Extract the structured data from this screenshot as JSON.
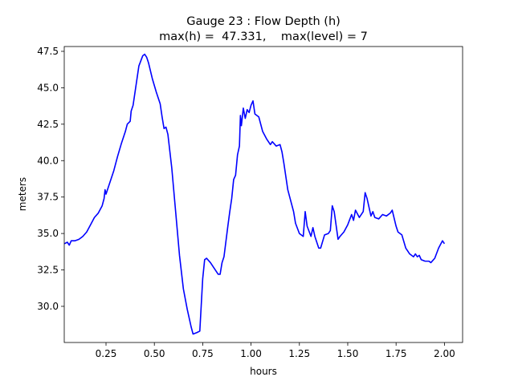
{
  "chart_data": {
    "type": "line",
    "title": "Gauge 23 : Flow Depth (h)",
    "subtitle": "max(h) =  47.331,    max(level) = 7",
    "xlabel": "hours",
    "ylabel": "meters",
    "color": "#0000ff",
    "xlim": [
      0.034,
      2.094
    ],
    "ylim": [
      27.52,
      47.83
    ],
    "xticks": [
      0.25,
      {
        "value": 0.5,
        "label": "0.50"
      },
      0.75,
      {
        "value": 1,
        "label": "1.00"
      },
      1.25,
      {
        "value": 1.5,
        "label": "1.50"
      },
      1.75,
      {
        "value": 2,
        "label": "2.00"
      }
    ],
    "yticks": [
      {
        "value": 30,
        "label": "30.0"
      },
      32.5,
      {
        "value": 35,
        "label": "35.0"
      },
      37.5,
      {
        "value": 40,
        "label": "40.0"
      },
      42.5,
      {
        "value": 45,
        "label": "45.0"
      },
      47.5
    ],
    "x": [
      0.035,
      0.05,
      0.06,
      0.07,
      0.09,
      0.11,
      0.13,
      0.15,
      0.17,
      0.19,
      0.21,
      0.23,
      0.24,
      0.245,
      0.25,
      0.27,
      0.29,
      0.31,
      0.33,
      0.35,
      0.36,
      0.375,
      0.38,
      0.39,
      0.4,
      0.42,
      0.44,
      0.45,
      0.46,
      0.47,
      0.49,
      0.51,
      0.53,
      0.54,
      0.55,
      0.56,
      0.57,
      0.59,
      0.61,
      0.63,
      0.65,
      0.67,
      0.69,
      0.7,
      0.72,
      0.735,
      0.75,
      0.76,
      0.77,
      0.79,
      0.81,
      0.83,
      0.84,
      0.85,
      0.86,
      0.88,
      0.89,
      0.9,
      0.91,
      0.92,
      0.93,
      0.94,
      0.945,
      0.95,
      0.96,
      0.97,
      0.98,
      0.99,
      1.0,
      1.01,
      1.02,
      1.04,
      1.06,
      1.08,
      1.1,
      1.11,
      1.13,
      1.15,
      1.16,
      1.17,
      1.19,
      1.2,
      1.22,
      1.23,
      1.25,
      1.27,
      1.28,
      1.29,
      1.31,
      1.32,
      1.33,
      1.35,
      1.36,
      1.38,
      1.4,
      1.41,
      1.42,
      1.43,
      1.45,
      1.46,
      1.48,
      1.5,
      1.52,
      1.53,
      1.54,
      1.56,
      1.58,
      1.59,
      1.6,
      1.62,
      1.63,
      1.64,
      1.66,
      1.68,
      1.7,
      1.72,
      1.73,
      1.75,
      1.76,
      1.78,
      1.8,
      1.82,
      1.84,
      1.85,
      1.86,
      1.87,
      1.88,
      1.9,
      1.92,
      1.93,
      1.95,
      1.97,
      1.99,
      2.0
    ],
    "values": [
      34.3,
      34.4,
      34.2,
      34.5,
      34.5,
      34.6,
      34.8,
      35.1,
      35.6,
      36.1,
      36.4,
      36.9,
      37.4,
      38.0,
      37.7,
      38.5,
      39.3,
      40.3,
      41.2,
      42.0,
      42.5,
      42.7,
      43.4,
      43.8,
      44.7,
      46.5,
      47.2,
      47.3,
      47.1,
      46.7,
      45.6,
      44.7,
      43.9,
      43.0,
      42.2,
      42.3,
      41.8,
      39.5,
      36.5,
      33.5,
      31.2,
      29.8,
      28.6,
      28.1,
      28.2,
      28.3,
      31.9,
      33.2,
      33.3,
      33.0,
      32.6,
      32.2,
      32.2,
      33.0,
      33.4,
      35.5,
      36.5,
      37.4,
      38.7,
      39.0,
      40.4,
      41.0,
      43.1,
      42.4,
      43.6,
      42.9,
      43.5,
      43.3,
      43.8,
      44.1,
      43.2,
      43.0,
      42.0,
      41.5,
      41.1,
      41.3,
      41.0,
      41.1,
      40.6,
      39.8,
      38.0,
      37.5,
      36.5,
      35.7,
      35.0,
      34.8,
      36.5,
      35.5,
      34.8,
      35.4,
      34.8,
      34.0,
      34.0,
      34.9,
      35.0,
      35.2,
      36.9,
      36.5,
      34.6,
      34.8,
      35.1,
      35.6,
      36.3,
      35.9,
      36.6,
      36.1,
      36.5,
      37.8,
      37.4,
      36.2,
      36.5,
      36.1,
      36.0,
      36.3,
      36.2,
      36.4,
      36.6,
      35.5,
      35.1,
      34.9,
      34.0,
      33.6,
      33.4,
      33.6,
      33.4,
      33.5,
      33.2,
      33.1,
      33.1,
      33.0,
      33.3,
      34.0,
      34.5,
      34.3
    ]
  }
}
